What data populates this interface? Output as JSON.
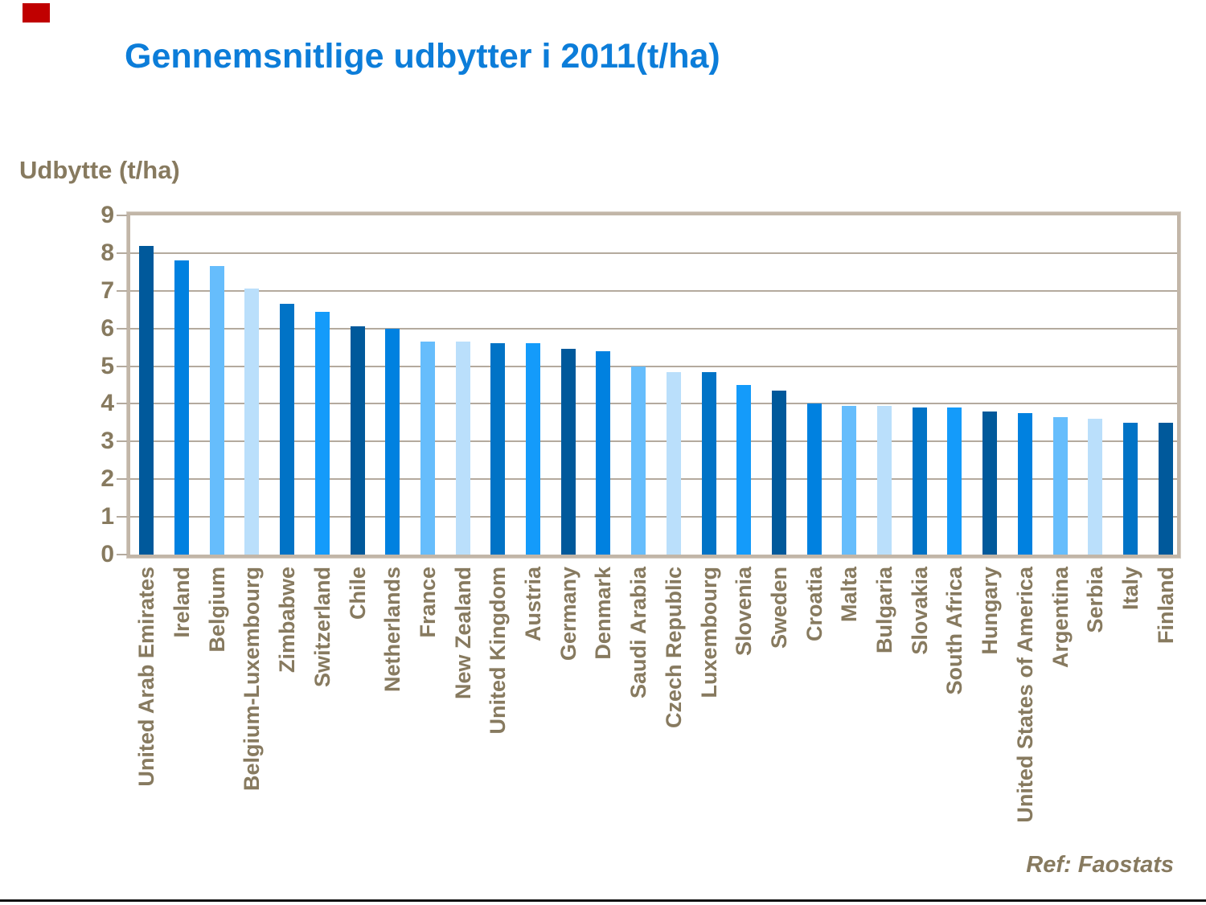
{
  "slide": {
    "marker_color": "#c00000",
    "title_color": "#0c7dd9",
    "text_color": "#877a5f",
    "ref_note": "Ref: Faostats",
    "bottom_rule_color": "#111111"
  },
  "chart_data": {
    "type": "bar",
    "title": "Gennemsnitlige udbytter i 2011(t/ha)",
    "ylabel": "Udbytte (t/ha)",
    "xlabel": "",
    "ylim": [
      0,
      9
    ],
    "yticks": [
      0,
      1,
      2,
      3,
      4,
      5,
      6,
      7,
      8,
      9
    ],
    "grid": true,
    "gridline_color": "#b4aa9e",
    "frame_color": "#c2b6a8",
    "axis_text_color": "#877a5f",
    "legend": "none",
    "categories": [
      "United Arab Emirates",
      "Ireland",
      "Belgium",
      "Belgium-Luxembourg",
      "Zimbabwe",
      "Switzerland",
      "Chile",
      "Netherlands",
      "France",
      "New Zealand",
      "United Kingdom",
      "Austria",
      "Germany",
      "Denmark",
      "Saudi Arabia",
      "Czech Republic",
      "Luxembourg",
      "Slovenia",
      "Sweden",
      "Croatia",
      "Malta",
      "Bulgaria",
      "Slovakia",
      "South Africa",
      "Hungary",
      "United States of America",
      "Argentina",
      "Serbia",
      "Italy",
      "Finland"
    ],
    "values": [
      8.2,
      7.8,
      7.65,
      7.05,
      6.65,
      6.45,
      6.05,
      6.0,
      5.65,
      5.65,
      5.6,
      5.6,
      5.45,
      5.4,
      5.0,
      4.85,
      4.85,
      4.5,
      4.35,
      4.0,
      3.95,
      3.95,
      3.9,
      3.9,
      3.8,
      3.75,
      3.65,
      3.6,
      3.5,
      3.5
    ],
    "bar_colors": [
      "navy",
      "medium",
      "sky",
      "pale",
      "middark",
      "bright",
      "navy",
      "medium",
      "sky",
      "pale",
      "middark",
      "bright",
      "navy",
      "medium",
      "sky",
      "pale",
      "middark",
      "bright",
      "navy",
      "medium",
      "sky",
      "pale",
      "middark",
      "bright",
      "navy",
      "medium",
      "sky",
      "pale",
      "middark",
      "navy"
    ],
    "palette": {
      "navy": "#00599b",
      "medium": "#0081e0",
      "sky": "#66bdfc",
      "pale": "#badffb",
      "middark": "#0173c6",
      "bright": "#149bfa"
    }
  }
}
